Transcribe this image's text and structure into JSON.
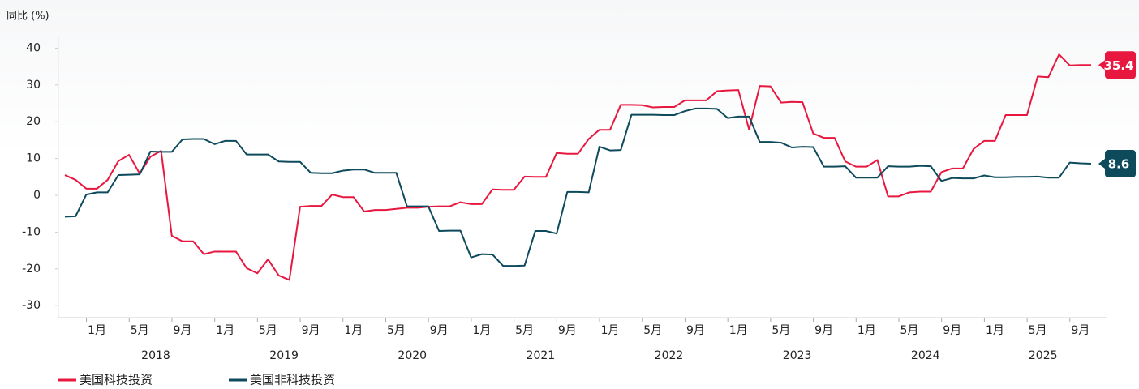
{
  "chart_data": {
    "type": "line",
    "ylabel": "同比 (%)",
    "x": [
      "2017-10",
      "2017-11",
      "2017-12",
      "2018-01",
      "2018-02",
      "2018-03",
      "2018-04",
      "2018-05",
      "2018-06",
      "2018-07",
      "2018-08",
      "2018-09",
      "2018-10",
      "2018-11",
      "2018-12",
      "2019-01",
      "2019-02",
      "2019-03",
      "2019-04",
      "2019-05",
      "2019-06",
      "2019-07",
      "2019-08",
      "2019-09",
      "2019-10",
      "2019-11",
      "2019-12",
      "2020-01",
      "2020-02",
      "2020-03",
      "2020-04",
      "2020-05",
      "2020-06",
      "2020-07",
      "2020-08",
      "2020-09",
      "2020-10",
      "2020-11",
      "2020-12",
      "2021-01",
      "2021-02",
      "2021-03",
      "2021-04",
      "2021-05",
      "2021-06",
      "2021-07",
      "2021-08",
      "2021-09",
      "2021-10",
      "2021-11",
      "2021-12",
      "2022-01",
      "2022-02",
      "2022-03",
      "2022-04",
      "2022-05",
      "2022-06",
      "2022-07",
      "2022-08",
      "2022-09",
      "2022-10",
      "2022-11",
      "2022-12",
      "2023-01",
      "2023-02",
      "2023-03",
      "2023-04",
      "2023-05",
      "2023-06",
      "2023-07",
      "2023-08",
      "2023-09",
      "2023-10",
      "2023-11",
      "2023-12",
      "2024-01",
      "2024-02",
      "2024-03",
      "2024-04",
      "2024-05",
      "2024-06",
      "2024-07",
      "2024-08",
      "2024-09",
      "2024-10",
      "2024-11",
      "2024-12",
      "2025-01",
      "2025-02",
      "2025-03",
      "2025-04",
      "2025-05",
      "2025-06",
      "2025-07",
      "2025-08",
      "2025-09",
      "2025-10"
    ],
    "series": [
      {
        "name": "美国科技投资",
        "color": "#e8173f",
        "values": [
          5.5,
          4.2,
          1.8,
          1.8,
          4.2,
          9.3,
          11.0,
          5.9,
          10.5,
          12.1,
          -11,
          -12.5,
          -12.5,
          -16,
          -15.3,
          -15.3,
          -15.3,
          -19.8,
          -21.2,
          -17.4,
          -21.8,
          -23,
          -3.1,
          -2.9,
          -2.9,
          0.2,
          -0.5,
          -0.5,
          -4.4,
          -4,
          -4,
          -3.7,
          -3.4,
          -3.4,
          -3.1,
          -3,
          -3,
          -1.9,
          -2.4,
          -2.4,
          1.6,
          1.5,
          1.5,
          5.1,
          5,
          5,
          11.5,
          11.3,
          11.3,
          15.3,
          17.8,
          17.8,
          24.6,
          24.6,
          24.5,
          23.9,
          24,
          24,
          25.8,
          25.8,
          25.8,
          28.3,
          28.5,
          28.6,
          17.9,
          29.7,
          29.6,
          25.2,
          25.4,
          25.3,
          16.8,
          15.6,
          15.6,
          9.2,
          7.8,
          7.8,
          9.6,
          -0.3,
          -0.3,
          0.8,
          1,
          1,
          6.3,
          7.3,
          7.3,
          12.6,
          14.8,
          14.8,
          21.8,
          21.8,
          21.8,
          32.3,
          32.1,
          38.3,
          35.3,
          35.4,
          35.4
        ]
      },
      {
        "name": "美国非科技投资",
        "color": "#0d4a5c",
        "values": [
          -5.8,
          -5.7,
          0.2,
          0.8,
          0.8,
          5.5,
          5.6,
          5.7,
          11.9,
          11.8,
          11.8,
          15.2,
          15.3,
          15.3,
          13.9,
          14.8,
          14.8,
          11.1,
          11.1,
          11.1,
          9.2,
          9.1,
          9.1,
          6.1,
          6.0,
          6.0,
          6.7,
          7.0,
          7.0,
          6.1,
          6.1,
          6.1,
          -3,
          -3,
          -3,
          -9.7,
          -9.6,
          -9.6,
          -16.9,
          -16.0,
          -16.1,
          -19.2,
          -19.2,
          -19.1,
          -9.7,
          -9.7,
          -10.4,
          0.9,
          0.9,
          0.8,
          13.2,
          12.2,
          12.3,
          21.9,
          21.9,
          21.9,
          21.8,
          21.8,
          22.9,
          23.6,
          23.6,
          23.5,
          21.0,
          21.4,
          21.4,
          14.5,
          14.5,
          14.3,
          13.0,
          13.2,
          13.1,
          7.8,
          7.8,
          7.9,
          4.8,
          4.8,
          4.8,
          7.9,
          7.8,
          7.8,
          8.0,
          7.9,
          3.9,
          4.7,
          4.6,
          4.6,
          5.4,
          4.9,
          4.9,
          5.0,
          5.0,
          5.1,
          4.8,
          4.8,
          8.9,
          8.7,
          8.6
        ]
      }
    ],
    "ylim": [
      -33,
      43
    ],
    "yticks": [
      -30,
      -20,
      -10,
      0,
      10,
      20,
      30,
      40
    ],
    "xticks": [
      {
        "value": "2018-01",
        "label": "1月"
      },
      {
        "value": "2018-05",
        "label": "5月"
      },
      {
        "value": "2018-09",
        "label": "9月"
      },
      {
        "value": "2019-01",
        "label": "1月"
      },
      {
        "value": "2019-05",
        "label": "5月"
      },
      {
        "value": "2019-09",
        "label": "9月"
      },
      {
        "value": "2020-01",
        "label": "1月"
      },
      {
        "value": "2020-05",
        "label": "5月"
      },
      {
        "value": "2020-09",
        "label": "9月"
      },
      {
        "value": "2021-01",
        "label": "1月"
      },
      {
        "value": "2021-05",
        "label": "5月"
      },
      {
        "value": "2021-09",
        "label": "9月"
      },
      {
        "value": "2022-01",
        "label": "1月"
      },
      {
        "value": "2022-05",
        "label": "5月"
      },
      {
        "value": "2022-09",
        "label": "9月"
      },
      {
        "value": "2023-01",
        "label": "1月"
      },
      {
        "value": "2023-05",
        "label": "5月"
      },
      {
        "value": "2023-09",
        "label": "9月"
      },
      {
        "value": "2024-01",
        "label": "1月"
      },
      {
        "value": "2024-05",
        "label": "5月"
      },
      {
        "value": "2024-09",
        "label": "9月"
      },
      {
        "value": "2025-01",
        "label": "1月"
      },
      {
        "value": "2025-05",
        "label": "5月"
      },
      {
        "value": "2025-09",
        "label": "9月"
      }
    ],
    "xgroups": [
      "2018",
      "2019",
      "2020",
      "2021",
      "2022",
      "2023",
      "2024",
      "2025"
    ],
    "grid": false,
    "legend": "bottom-left"
  }
}
